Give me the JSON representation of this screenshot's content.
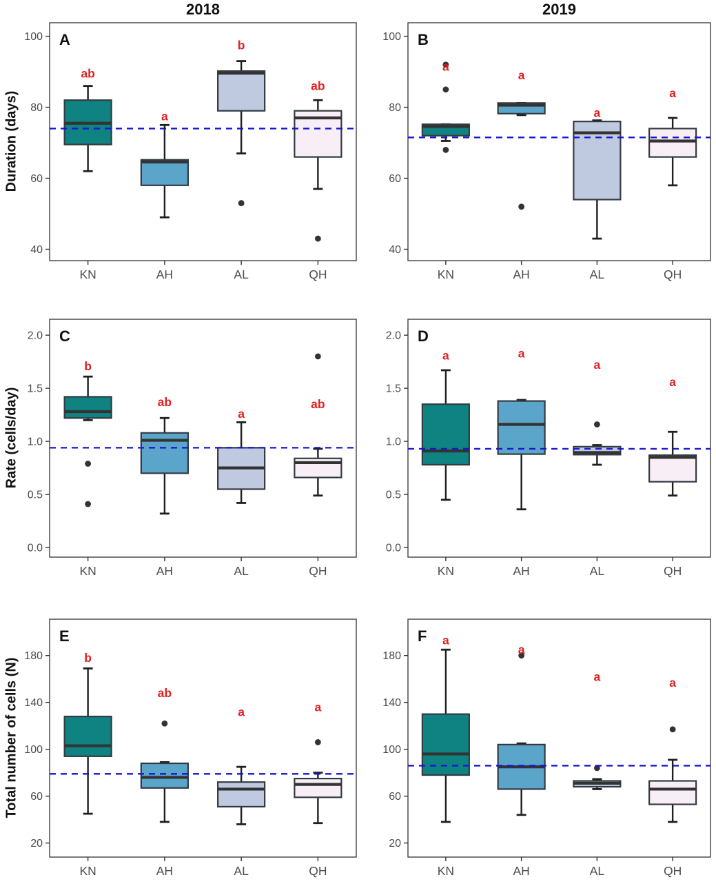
{
  "figure": {
    "column_titles": [
      "2018",
      "2019"
    ],
    "row_labels": [
      "Duration (days)",
      "Rate (cells/day)",
      "Total number of cells (N)"
    ],
    "categories": [
      "KN",
      "AH",
      "AL",
      "QH"
    ],
    "colors": {
      "box_fills": {
        "KN": "#0f8282",
        "AH": "#5ba4ca",
        "AL": "#bfc9e0",
        "QH": "#f7eef6"
      },
      "box_border": "#333b42",
      "median": "#333333",
      "whisker": "#1f1f1f",
      "outlier": "#333333",
      "refline": "#1414d4",
      "sig_letter": "#e22020",
      "axis_text": "#4d4d4d",
      "panel_border": "#404040"
    }
  },
  "chart_data": [
    {
      "type": "boxplot",
      "panel_label": "A",
      "column_title": "2018",
      "ylabel": "Duration (days)",
      "ylim": [
        36.8,
        103.8
      ],
      "yticks": [
        40,
        60,
        80,
        100
      ],
      "ytick_labels": [
        "40",
        "60",
        "80",
        "100"
      ],
      "refline": 74,
      "categories": [
        "KN",
        "AH",
        "AL",
        "QH"
      ],
      "boxes": [
        {
          "category": "KN",
          "sig": "ab",
          "sig_y": 89.5,
          "low": 62,
          "q1": 69.5,
          "median": 75.5,
          "q3": 82,
          "high": 86,
          "outliers": []
        },
        {
          "category": "AH",
          "sig": "a",
          "sig_y": 77.5,
          "low": 49,
          "q1": 58,
          "median": 64.6,
          "q3": 65.2,
          "high": 75,
          "outliers": []
        },
        {
          "category": "AL",
          "sig": "b",
          "sig_y": 97.5,
          "low": 67,
          "q1": 79,
          "median": 89.6,
          "q3": 90.2,
          "high": 93,
          "outliers": [
            53
          ]
        },
        {
          "category": "QH",
          "sig": "ab",
          "sig_y": 86,
          "low": 57,
          "q1": 66,
          "median": 77,
          "q3": 79,
          "high": 82,
          "outliers": [
            43
          ]
        }
      ]
    },
    {
      "type": "boxplot",
      "panel_label": "B",
      "column_title": "2019",
      "ylabel": "",
      "ylim": [
        36.8,
        103.8
      ],
      "yticks": [
        40,
        60,
        80,
        100
      ],
      "ytick_labels": [
        "40",
        "60",
        "80",
        "100"
      ],
      "refline": 71.5,
      "categories": [
        "KN",
        "AH",
        "AL",
        "QH"
      ],
      "boxes": [
        {
          "category": "KN",
          "sig": "a",
          "sig_y": 91.5,
          "low": 70.5,
          "q1": 72,
          "median": 74.6,
          "q3": 75.2,
          "high": 75.2,
          "outliers": [
            92,
            85,
            68
          ]
        },
        {
          "category": "AH",
          "sig": "a",
          "sig_y": 89,
          "low": 77.8,
          "q1": 78.2,
          "median": 80.6,
          "q3": 81.2,
          "high": 81.2,
          "outliers": [
            52
          ]
        },
        {
          "category": "AL",
          "sig": "a",
          "sig_y": 78.5,
          "low": 43,
          "q1": 54,
          "median": 72.8,
          "q3": 76,
          "high": 76.3,
          "outliers": []
        },
        {
          "category": "QH",
          "sig": "a",
          "sig_y": 84,
          "low": 58,
          "q1": 66,
          "median": 70.5,
          "q3": 74,
          "high": 77,
          "outliers": []
        }
      ]
    },
    {
      "type": "boxplot",
      "panel_label": "C",
      "column_title": "2018",
      "ylabel": "Rate (cells/day)",
      "ylim": [
        -0.09,
        2.15
      ],
      "yticks": [
        0.0,
        0.5,
        1.0,
        1.5,
        2.0
      ],
      "ytick_labels": [
        "0.0",
        "0.5",
        "1.0",
        "1.5",
        "2.0"
      ],
      "refline": 0.94,
      "categories": [
        "KN",
        "AH",
        "AL",
        "QH"
      ],
      "boxes": [
        {
          "category": "KN",
          "sig": "b",
          "sig_y": 1.71,
          "low": 1.2,
          "q1": 1.22,
          "median": 1.28,
          "q3": 1.42,
          "high": 1.61,
          "outliers": [
            0.79,
            0.41
          ]
        },
        {
          "category": "AH",
          "sig": "ab",
          "sig_y": 1.37,
          "low": 0.32,
          "q1": 0.7,
          "median": 1.01,
          "q3": 1.08,
          "high": 1.22,
          "outliers": []
        },
        {
          "category": "AL",
          "sig": "a",
          "sig_y": 1.26,
          "low": 0.42,
          "q1": 0.55,
          "median": 0.75,
          "q3": 0.94,
          "high": 1.18,
          "outliers": []
        },
        {
          "category": "QH",
          "sig": "ab",
          "sig_y": 1.35,
          "low": 0.49,
          "q1": 0.66,
          "median": 0.8,
          "q3": 0.84,
          "high": 0.93,
          "outliers": [
            1.8
          ]
        }
      ]
    },
    {
      "type": "boxplot",
      "panel_label": "D",
      "column_title": "2019",
      "ylabel": "",
      "ylim": [
        -0.09,
        2.15
      ],
      "yticks": [
        0.0,
        0.5,
        1.0,
        1.5,
        2.0
      ],
      "ytick_labels": [
        "0.0",
        "0.5",
        "1.0",
        "1.5",
        "2.0"
      ],
      "refline": 0.93,
      "categories": [
        "KN",
        "AH",
        "AL",
        "QH"
      ],
      "boxes": [
        {
          "category": "KN",
          "sig": "a",
          "sig_y": 1.81,
          "low": 0.45,
          "q1": 0.78,
          "median": 0.91,
          "q3": 1.35,
          "high": 1.67,
          "outliers": []
        },
        {
          "category": "AH",
          "sig": "a",
          "sig_y": 1.83,
          "low": 0.36,
          "q1": 0.88,
          "median": 1.16,
          "q3": 1.38,
          "high": 1.39,
          "outliers": []
        },
        {
          "category": "AL",
          "sig": "a",
          "sig_y": 1.72,
          "low": 0.78,
          "q1": 0.875,
          "median": 0.895,
          "q3": 0.95,
          "high": 0.965,
          "outliers": [
            1.16
          ]
        },
        {
          "category": "QH",
          "sig": "a",
          "sig_y": 1.56,
          "low": 0.49,
          "q1": 0.62,
          "median": 0.85,
          "q3": 0.87,
          "high": 1.09,
          "outliers": []
        }
      ]
    },
    {
      "type": "boxplot",
      "panel_label": "E",
      "column_title": "2018",
      "ylabel": "Total number of cells (N)",
      "ylim": [
        8,
        211
      ],
      "yticks": [
        20,
        60,
        100,
        140,
        180
      ],
      "ytick_labels": [
        "20",
        "60",
        "100",
        "140",
        "180"
      ],
      "refline": 79,
      "categories": [
        "KN",
        "AH",
        "AL",
        "QH"
      ],
      "boxes": [
        {
          "category": "KN",
          "sig": "b",
          "sig_y": 178,
          "low": 45,
          "q1": 94,
          "median": 103,
          "q3": 128,
          "high": 169,
          "outliers": []
        },
        {
          "category": "AH",
          "sig": "ab",
          "sig_y": 148,
          "low": 38,
          "q1": 67,
          "median": 76,
          "q3": 88,
          "high": 89,
          "outliers": [
            122
          ]
        },
        {
          "category": "AL",
          "sig": "a",
          "sig_y": 132,
          "low": 36,
          "q1": 51,
          "median": 66,
          "q3": 72,
          "high": 85,
          "outliers": []
        },
        {
          "category": "QH",
          "sig": "a",
          "sig_y": 136,
          "low": 37,
          "q1": 59,
          "median": 70,
          "q3": 75,
          "high": 80,
          "outliers": [
            106
          ]
        }
      ]
    },
    {
      "type": "boxplot",
      "panel_label": "F",
      "column_title": "2019",
      "ylabel": "",
      "ylim": [
        8,
        211
      ],
      "yticks": [
        20,
        60,
        100,
        140,
        180
      ],
      "ytick_labels": [
        "20",
        "60",
        "100",
        "140",
        "180"
      ],
      "refline": 86,
      "categories": [
        "KN",
        "AH",
        "AL",
        "QH"
      ],
      "boxes": [
        {
          "category": "KN",
          "sig": "a",
          "sig_y": 193,
          "low": 38,
          "q1": 78,
          "median": 96,
          "q3": 130,
          "high": 185,
          "outliers": []
        },
        {
          "category": "AH",
          "sig": "a",
          "sig_y": 185,
          "low": 44,
          "q1": 66,
          "median": 85,
          "q3": 104,
          "high": 105,
          "outliers": [
            180
          ]
        },
        {
          "category": "AL",
          "sig": "a",
          "sig_y": 162,
          "low": 66,
          "q1": 68,
          "median": 71,
          "q3": 73,
          "high": 74.5,
          "outliers": [
            84
          ]
        },
        {
          "category": "QH",
          "sig": "a",
          "sig_y": 157,
          "low": 38,
          "q1": 53,
          "median": 66,
          "q3": 73,
          "high": 91,
          "outliers": [
            117
          ]
        }
      ]
    }
  ]
}
